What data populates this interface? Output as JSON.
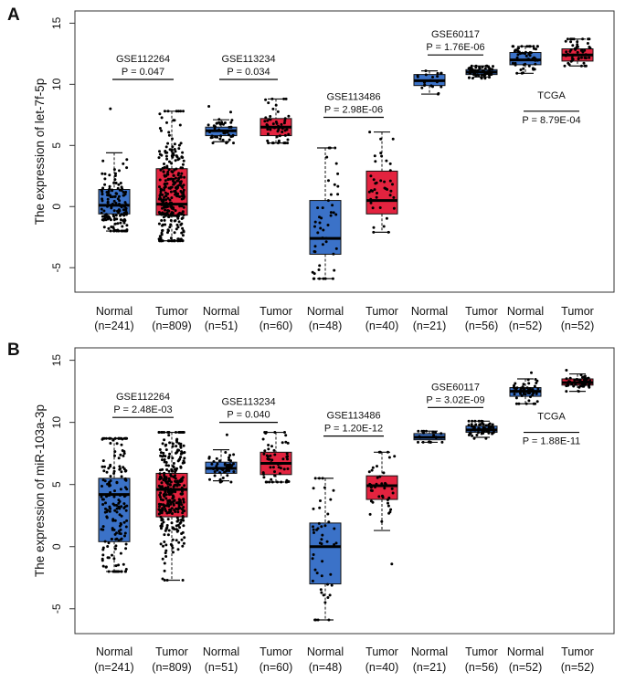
{
  "chart_data": [
    {
      "type": "box",
      "panel": "A",
      "ylabel": "The expression of let-7f-5p",
      "ylim": [
        -7,
        16
      ],
      "yticks": [
        -5,
        0,
        5,
        10,
        15
      ],
      "groups": [
        {
          "label": "Normal",
          "n": "(n=241)",
          "color": "#3b72c8",
          "q1": -0.6,
          "median": 0.1,
          "q3": 1.4,
          "wmin": -2.0,
          "wmax": 4.4,
          "pmin": -2.0,
          "pmax": 8.0,
          "npts": 150
        },
        {
          "label": "Tumor",
          "n": "(n=809)",
          "color": "#e3233f",
          "q1": -0.7,
          "median": 0.2,
          "q3": 3.1,
          "wmin": -2.8,
          "wmax": 7.8,
          "pmin": -2.8,
          "pmax": 7.8,
          "npts": 300
        },
        {
          "label": "Normal",
          "n": "(n=51)",
          "color": "#3b72c8",
          "q1": 5.8,
          "median": 6.2,
          "q3": 6.5,
          "wmin": 5.3,
          "wmax": 7.1,
          "pmin": 5.2,
          "pmax": 8.2,
          "npts": 45
        },
        {
          "label": "Tumor",
          "n": "(n=60)",
          "color": "#e3233f",
          "q1": 5.8,
          "median": 6.5,
          "q3": 7.2,
          "wmin": 5.2,
          "wmax": 8.8,
          "pmin": 5.2,
          "pmax": 8.8,
          "npts": 55
        },
        {
          "label": "Normal",
          "n": "(n=48)",
          "color": "#3b72c8",
          "q1": -3.9,
          "median": -2.6,
          "q3": 0.5,
          "wmin": -5.9,
          "wmax": 4.8,
          "pmin": -5.9,
          "pmax": 4.8,
          "npts": 48
        },
        {
          "label": "Tumor",
          "n": "(n=40)",
          "color": "#e3233f",
          "q1": -0.6,
          "median": 0.5,
          "q3": 2.9,
          "wmin": -2.1,
          "wmax": 6.1,
          "pmin": -2.1,
          "pmax": 6.1,
          "npts": 40
        },
        {
          "label": "Normal",
          "n": "(n=21)",
          "color": "#3b72c8",
          "q1": 9.9,
          "median": 10.3,
          "q3": 10.8,
          "wmin": 9.2,
          "wmax": 11.1,
          "pmin": 9.2,
          "pmax": 11.1,
          "npts": 21
        },
        {
          "label": "Tumor",
          "n": "(n=56)",
          "color": "#3b72c8",
          "q1": 10.8,
          "median": 11.0,
          "q3": 11.2,
          "wmin": 10.6,
          "wmax": 11.5,
          "pmin": 10.5,
          "pmax": 11.5,
          "npts": 56
        },
        {
          "label": "Normal",
          "n": "(n=52)",
          "color": "#3b72c8",
          "q1": 11.6,
          "median": 12.0,
          "q3": 12.6,
          "wmin": 10.9,
          "wmax": 13.1,
          "pmin": 10.9,
          "pmax": 13.1,
          "npts": 52
        },
        {
          "label": "Tumor",
          "n": "(n=52)",
          "color": "#e3233f",
          "q1": 11.9,
          "median": 12.4,
          "q3": 12.9,
          "wmin": 11.5,
          "wmax": 13.7,
          "pmin": 11.5,
          "pmax": 13.7,
          "npts": 52
        }
      ],
      "annotations": [
        {
          "dataset": "GSE112264",
          "p": "P = 0.047",
          "from": 0,
          "to": 1,
          "y": 10.4,
          "above": true
        },
        {
          "dataset": "GSE113234",
          "p": "P = 0.034",
          "from": 2,
          "to": 3,
          "y": 10.4,
          "above": true
        },
        {
          "dataset": "GSE113486",
          "p": "P = 2.98E-06",
          "from": 4,
          "to": 5,
          "y": 7.3,
          "above": true
        },
        {
          "dataset": "GSE60117",
          "p": "P = 1.76E-06",
          "from": 6,
          "to": 7,
          "y": 12.4,
          "above": true
        },
        {
          "dataset": "TCGA",
          "p": "P = 8.79E-04",
          "from": 8,
          "to": 9,
          "y": 7.8,
          "above": false
        }
      ]
    },
    {
      "type": "box",
      "panel": "B",
      "ylabel": "The expression of miR-103a-3p",
      "ylim": [
        -7,
        16
      ],
      "yticks": [
        -5,
        0,
        5,
        10,
        15
      ],
      "groups": [
        {
          "label": "Normal",
          "n": "(n=241)",
          "color": "#3b72c8",
          "q1": 0.4,
          "median": 4.2,
          "q3": 5.5,
          "wmin": -2.0,
          "wmax": 8.7,
          "pmin": -2.0,
          "pmax": 8.7,
          "npts": 180
        },
        {
          "label": "Tumor",
          "n": "(n=809)",
          "color": "#e3233f",
          "q1": 2.4,
          "median": 4.6,
          "q3": 5.9,
          "wmin": -2.7,
          "wmax": 9.2,
          "pmin": -2.7,
          "pmax": 9.2,
          "npts": 320
        },
        {
          "label": "Normal",
          "n": "(n=51)",
          "color": "#3b72c8",
          "q1": 5.9,
          "median": 6.3,
          "q3": 6.8,
          "wmin": 5.3,
          "wmax": 7.8,
          "pmin": 5.2,
          "pmax": 9.0,
          "npts": 45
        },
        {
          "label": "Tumor",
          "n": "(n=60)",
          "color": "#e3233f",
          "q1": 5.8,
          "median": 6.7,
          "q3": 7.6,
          "wmin": 5.2,
          "wmax": 9.2,
          "pmin": 5.2,
          "pmax": 9.2,
          "npts": 55
        },
        {
          "label": "Normal",
          "n": "(n=48)",
          "color": "#3b72c8",
          "q1": -3.0,
          "median": 0.0,
          "q3": 1.9,
          "wmin": -5.9,
          "wmax": 5.5,
          "pmin": -5.9,
          "pmax": 5.5,
          "npts": 48
        },
        {
          "label": "Tumor",
          "n": "(n=40)",
          "color": "#e3233f",
          "q1": 3.8,
          "median": 4.9,
          "q3": 5.7,
          "wmin": 1.3,
          "wmax": 7.6,
          "pmin": -1.4,
          "pmax": 7.6,
          "npts": 40
        },
        {
          "label": "Normal",
          "n": "(n=21)",
          "color": "#3b72c8",
          "q1": 8.6,
          "median": 8.8,
          "q3": 9.1,
          "wmin": 8.4,
          "wmax": 9.3,
          "pmin": 8.4,
          "pmax": 9.3,
          "npts": 21
        },
        {
          "label": "Tumor",
          "n": "(n=56)",
          "color": "#3b72c8",
          "q1": 9.2,
          "median": 9.4,
          "q3": 9.7,
          "wmin": 8.8,
          "wmax": 10.1,
          "pmin": 8.7,
          "pmax": 10.1,
          "npts": 56
        },
        {
          "label": "Normal",
          "n": "(n=52)",
          "color": "#3b72c8",
          "q1": 12.1,
          "median": 12.5,
          "q3": 12.8,
          "wmin": 11.5,
          "wmax": 13.5,
          "pmin": 11.5,
          "pmax": 14.0,
          "npts": 52
        },
        {
          "label": "Tumor",
          "n": "(n=52)",
          "color": "#e3233f",
          "q1": 13.0,
          "median": 13.2,
          "q3": 13.5,
          "wmin": 12.5,
          "wmax": 13.9,
          "pmin": 12.5,
          "pmax": 14.2,
          "npts": 52
        }
      ],
      "annotations": [
        {
          "dataset": "GSE112264",
          "p": "P = 2.48E-03",
          "from": 0,
          "to": 1,
          "y": 10.4,
          "above": true
        },
        {
          "dataset": "GSE113234",
          "p": "P = 0.040",
          "from": 2,
          "to": 3,
          "y": 10.0,
          "above": true
        },
        {
          "dataset": "GSE113486",
          "p": "P = 1.20E-12",
          "from": 4,
          "to": 5,
          "y": 8.9,
          "above": true
        },
        {
          "dataset": "GSE60117",
          "p": "P = 3.02E-09",
          "from": 6,
          "to": 7,
          "y": 11.2,
          "above": true
        },
        {
          "dataset": "TCGA",
          "p": "P = 1.88E-11",
          "from": 8,
          "to": 9,
          "y": 9.2,
          "above": false
        }
      ]
    }
  ]
}
